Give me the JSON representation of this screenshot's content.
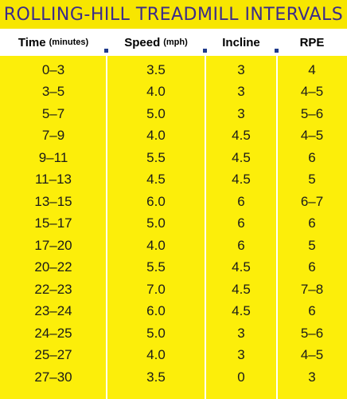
{
  "title": "ROLLING-HILL TREADMILL INTERVALS",
  "columns": [
    {
      "label": "Time",
      "unit": "(minutes)"
    },
    {
      "label": "Speed",
      "unit": "(mph)"
    },
    {
      "label": "Incline",
      "unit": ""
    },
    {
      "label": "RPE",
      "unit": ""
    }
  ],
  "rows": [
    [
      "0–3",
      "3.5",
      "3",
      "4"
    ],
    [
      "3–5",
      "4.0",
      "3",
      "4–5"
    ],
    [
      "5–7",
      "5.0",
      "3",
      "5–6"
    ],
    [
      "7–9",
      "4.0",
      "4.5",
      "4–5"
    ],
    [
      "9–11",
      "5.5",
      "4.5",
      "6"
    ],
    [
      "11–13",
      "4.5",
      "4.5",
      "5"
    ],
    [
      "13–15",
      "6.0",
      "6",
      "6–7"
    ],
    [
      "15–17",
      "5.0",
      "6",
      "6"
    ],
    [
      "17–20",
      "4.0",
      "6",
      "5"
    ],
    [
      "20–22",
      "5.5",
      "4.5",
      "6"
    ],
    [
      "22–23",
      "7.0",
      "4.5",
      "7–8"
    ],
    [
      "23–24",
      "6.0",
      "4.5",
      "6"
    ],
    [
      "24–25",
      "5.0",
      "3",
      "5–6"
    ],
    [
      "25–27",
      "4.0",
      "3",
      "4–5"
    ],
    [
      "27–30",
      "3.5",
      "0",
      "3"
    ]
  ],
  "colors": {
    "title_background": "#f7e600",
    "title_text": "#3b2b8a",
    "table_background": "#fcee0a",
    "marker": "#1f3a8c"
  }
}
